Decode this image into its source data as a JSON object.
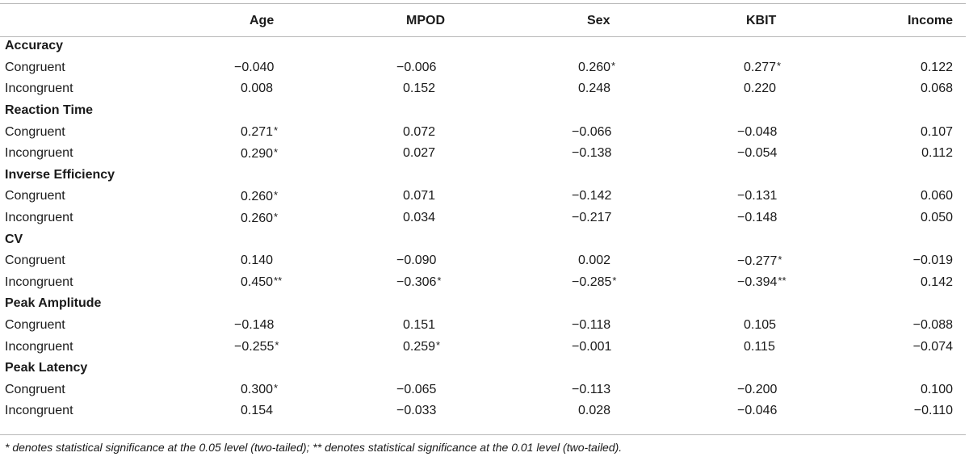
{
  "headers": [
    "",
    "Age",
    "MPOD",
    "Sex",
    "KBIT",
    "Income"
  ],
  "sections": [
    {
      "title": "Accuracy",
      "rows": [
        {
          "label": "Congruent",
          "values": [
            "−0.040",
            "−0.006",
            "0.260*",
            "0.277*",
            "0.122"
          ]
        },
        {
          "label": "Incongruent",
          "values": [
            "0.008",
            "0.152",
            "0.248",
            "0.220",
            "0.068"
          ]
        }
      ]
    },
    {
      "title": "Reaction Time",
      "rows": [
        {
          "label": "Congruent",
          "values": [
            "0.271*",
            "0.072",
            "−0.066",
            "−0.048",
            "0.107"
          ]
        },
        {
          "label": "Incongruent",
          "values": [
            "0.290*",
            "0.027",
            "−0.138",
            "−0.054",
            "0.112"
          ]
        }
      ]
    },
    {
      "title": "Inverse Efficiency",
      "rows": [
        {
          "label": "Congruent",
          "values": [
            "0.260*",
            "0.071",
            "−0.142",
            "−0.131",
            "0.060"
          ]
        },
        {
          "label": "Incongruent",
          "values": [
            "0.260*",
            "0.034",
            "−0.217",
            "−0.148",
            "0.050"
          ]
        }
      ]
    },
    {
      "title": "CV",
      "rows": [
        {
          "label": "Congruent",
          "values": [
            "0.140",
            "−0.090",
            "0.002",
            "−0.277*",
            "−0.019"
          ]
        },
        {
          "label": "Incongruent",
          "values": [
            "0.450**",
            "−0.306*",
            "−0.285*",
            "−0.394**",
            "0.142"
          ]
        }
      ]
    },
    {
      "title": "Peak Amplitude",
      "rows": [
        {
          "label": "Congruent",
          "values": [
            "−0.148",
            "0.151",
            "−0.118",
            "0.105",
            "−0.088"
          ]
        },
        {
          "label": "Incongruent",
          "values": [
            "−0.255*",
            "0.259*",
            "−0.001",
            "0.115",
            "−0.074"
          ]
        }
      ]
    },
    {
      "title": "Peak Latency",
      "rows": [
        {
          "label": "Congruent",
          "values": [
            "0.300*",
            "−0.065",
            "−0.113",
            "−0.200",
            "0.100"
          ]
        },
        {
          "label": "Incongruent",
          "values": [
            "0.154",
            "−0.033",
            "0.028",
            "−0.046",
            "−0.110"
          ]
        }
      ]
    }
  ],
  "footnote": "* denotes statistical significance at the 0.05 level (two-tailed); ** denotes statistical significance at the 0.01 level (two-tailed)."
}
